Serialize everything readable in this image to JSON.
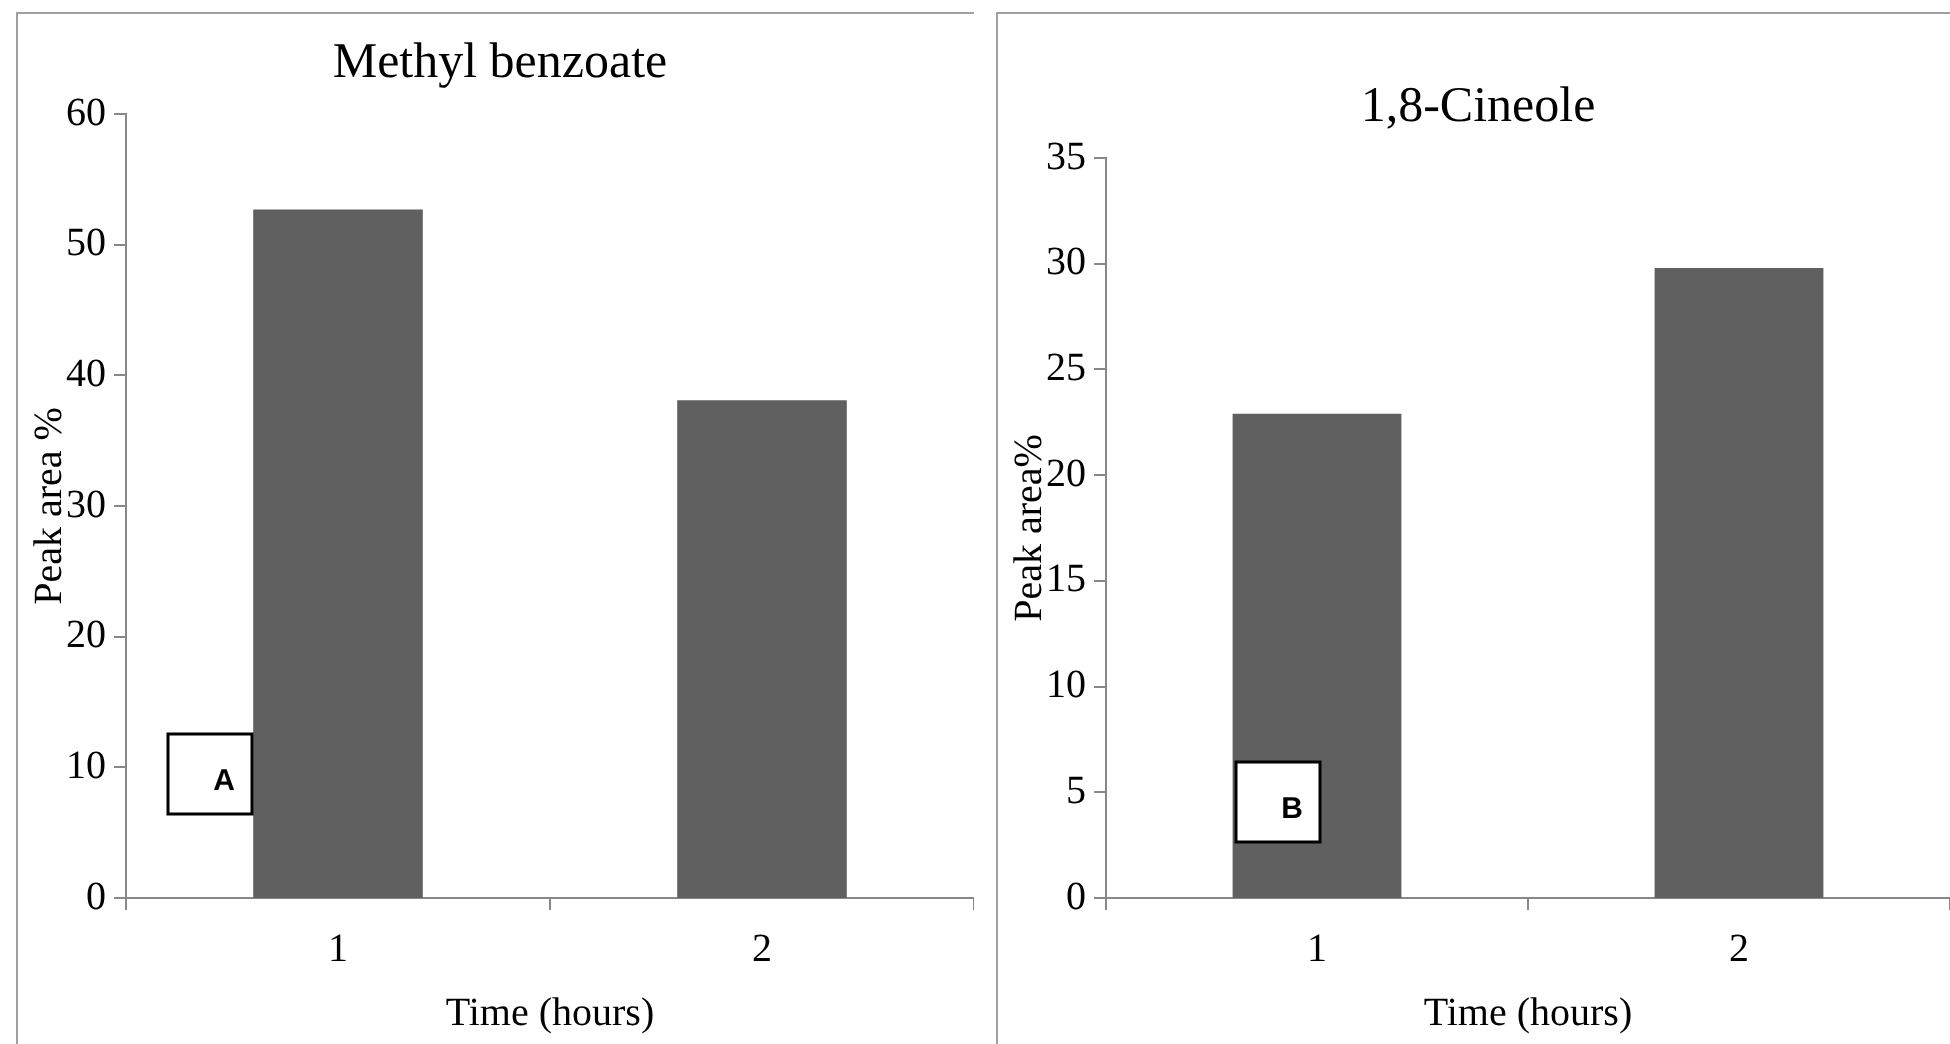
{
  "chart_data": [
    {
      "type": "bar",
      "title": "Methyl benzoate",
      "xlabel": "Time (hours)",
      "ylabel": "Peak area %",
      "categories": [
        "1",
        "2"
      ],
      "values": [
        52.7,
        38.1
      ],
      "color": "#606060",
      "ylim": [
        0,
        60
      ],
      "yticks": [
        0,
        10,
        20,
        30,
        40,
        50,
        60
      ],
      "annotations": [
        "A"
      ]
    },
    {
      "type": "bar",
      "title": "1,8-Cineole",
      "xlabel": "Time (hours)",
      "ylabel": "Peak area%",
      "categories": [
        "1",
        "2"
      ],
      "values": [
        22.9,
        29.8
      ],
      "color": "#606060",
      "ylim": [
        0,
        35
      ],
      "yticks": [
        0,
        5,
        10,
        15,
        20,
        25,
        30,
        35
      ],
      "annotations": [
        "B"
      ]
    }
  ]
}
